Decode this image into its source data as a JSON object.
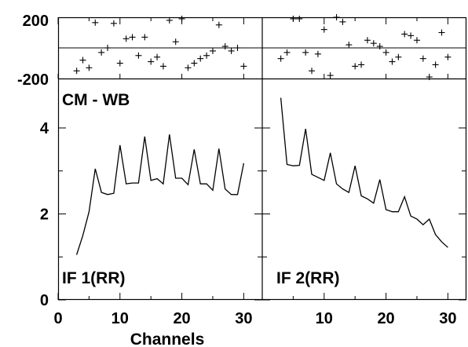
{
  "chart_data": {
    "type": "line",
    "xlabel": "Channels",
    "phase_panel_label": "CM - WB",
    "amplitude_panels": [
      {
        "label": "IF 1(RR)",
        "x": [
          3,
          4,
          5,
          6,
          7,
          8,
          9,
          10,
          11,
          12,
          13,
          14,
          15,
          16,
          17,
          18,
          19,
          20,
          21,
          22,
          23,
          24,
          25,
          26,
          27,
          28,
          29,
          30
        ],
        "values": [
          1.05,
          1.5,
          2.05,
          3.05,
          2.5,
          2.45,
          2.48,
          3.6,
          2.7,
          2.72,
          2.72,
          3.8,
          2.78,
          2.82,
          2.7,
          3.85,
          2.83,
          2.83,
          2.68,
          3.5,
          2.7,
          2.7,
          2.55,
          3.52,
          2.58,
          2.45,
          2.45,
          3.18
        ]
      },
      {
        "label": "IF 2(RR)",
        "x": [
          3,
          4,
          5,
          6,
          7,
          8,
          9,
          10,
          11,
          12,
          13,
          14,
          15,
          16,
          17,
          18,
          19,
          20,
          21,
          22,
          23,
          24,
          25,
          26,
          27,
          28,
          29,
          30
        ],
        "values": [
          4.7,
          3.15,
          3.12,
          3.13,
          3.98,
          2.92,
          2.85,
          2.78,
          3.42,
          2.7,
          2.58,
          2.5,
          3.12,
          2.42,
          2.35,
          2.25,
          2.8,
          2.1,
          2.05,
          2.05,
          2.4,
          1.95,
          1.88,
          1.75,
          1.88,
          1.52,
          1.35,
          1.22
        ]
      }
    ],
    "phase_panels": [
      {
        "x": [
          3,
          4,
          5,
          6,
          7,
          8,
          9,
          10,
          11,
          12,
          13,
          14,
          15,
          16,
          17,
          18,
          19,
          20,
          21,
          22,
          23,
          24,
          25,
          26,
          27,
          28,
          29,
          30
        ],
        "values": [
          -150,
          -80,
          -130,
          165,
          -30,
          0,
          160,
          -100,
          60,
          70,
          -50,
          70,
          -90,
          -60,
          -120,
          180,
          40,
          190,
          -130,
          -100,
          -70,
          -50,
          -20,
          150,
          10,
          -20,
          0,
          -120
        ]
      },
      {
        "x": [
          3,
          4,
          5,
          6,
          7,
          8,
          9,
          10,
          11,
          12,
          13,
          14,
          15,
          16,
          17,
          18,
          19,
          20,
          21,
          22,
          23,
          24,
          25,
          26,
          27,
          28,
          29,
          30
        ],
        "values": [
          -70,
          -30,
          190,
          190,
          -30,
          -150,
          -40,
          120,
          -180,
          200,
          170,
          20,
          -120,
          -110,
          50,
          30,
          10,
          -30,
          -90,
          -60,
          90,
          80,
          50,
          -70,
          -190,
          -110,
          100,
          -60
        ]
      }
    ],
    "x_ticks": [
      "0",
      "10",
      "20",
      "30"
    ],
    "amplitude_y_ticks": [
      "0",
      "2",
      "4"
    ],
    "phase_y_ticks": [
      "200",
      "-200"
    ],
    "amplitude_ylim": [
      0,
      5.15
    ],
    "phase_ylim": [
      -200,
      200
    ],
    "xlim": [
      0,
      33
    ]
  }
}
